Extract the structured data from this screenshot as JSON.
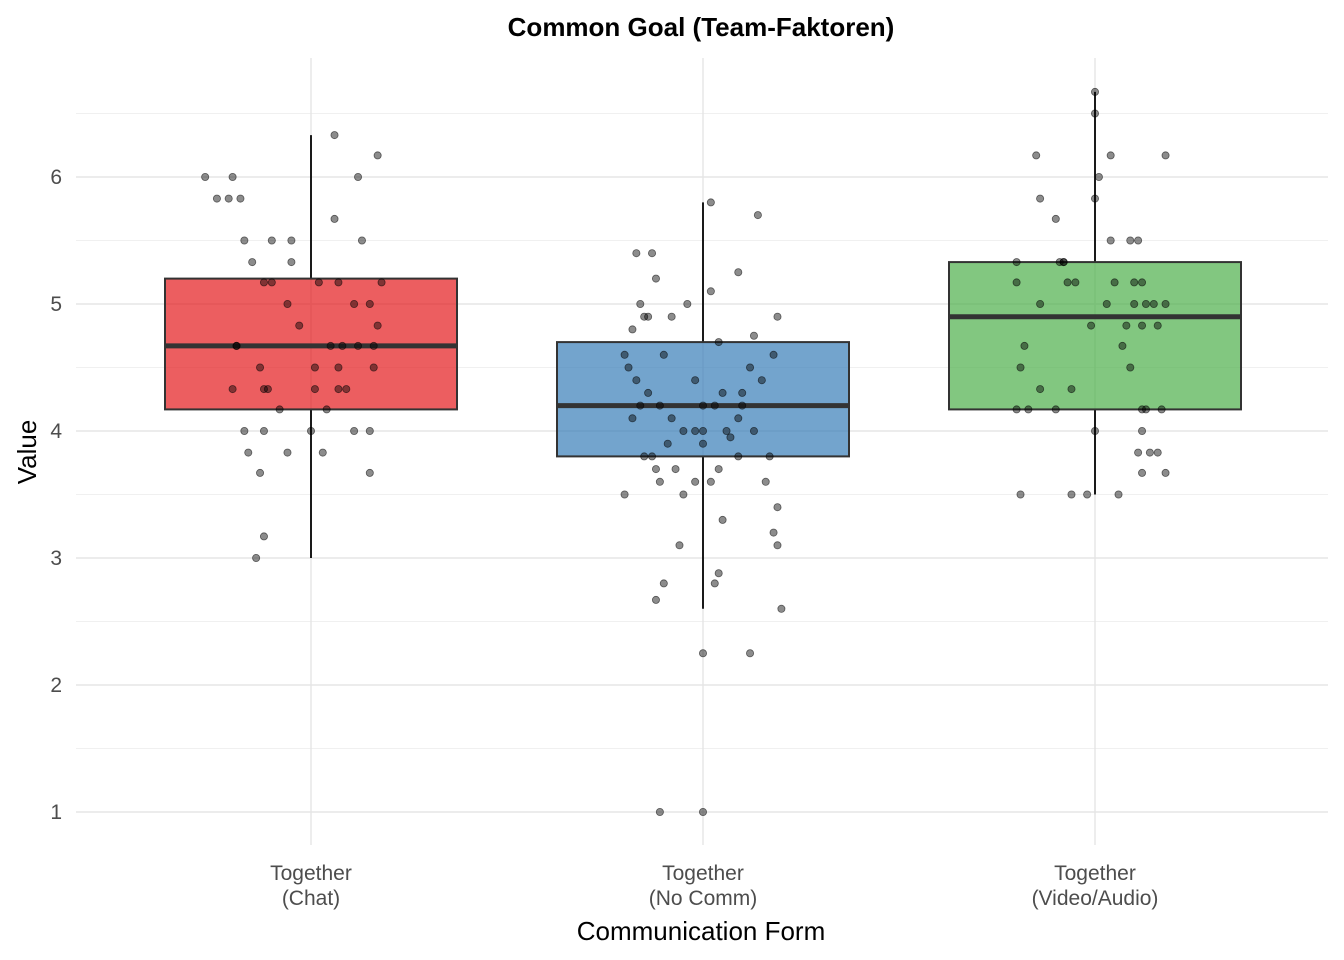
{
  "chart_data": {
    "type": "boxplot",
    "title": "Common Goal (Team-Faktoren)",
    "xlabel": "Communication Form",
    "ylabel": "Value",
    "ylim": [
      0.75,
      6.95
    ],
    "yticks": [
      1,
      2,
      3,
      4,
      5,
      6
    ],
    "grid": true,
    "categories": [
      [
        "Together",
        "(Chat)"
      ],
      [
        "Together",
        "(No Comm)"
      ],
      [
        "Together",
        "(Video/Audio)"
      ]
    ],
    "boxes": [
      {
        "category": "Together (Chat)",
        "color": "#E41A1C",
        "q1": 4.17,
        "median": 4.67,
        "q3": 5.2,
        "whisker_low": 3.0,
        "whisker_high": 6.33,
        "points": [
          [
            -0.27,
            6.0
          ],
          [
            -0.24,
            5.83
          ],
          [
            -0.21,
            5.83
          ],
          [
            -0.18,
            5.83
          ],
          [
            -0.17,
            5.5
          ],
          [
            -0.15,
            5.33
          ],
          [
            -0.1,
            5.5
          ],
          [
            -0.05,
            5.5
          ],
          [
            -0.05,
            5.33
          ],
          [
            -0.2,
            6.0
          ],
          [
            -0.12,
            5.17
          ],
          [
            -0.1,
            5.17
          ],
          [
            -0.06,
            5.0
          ],
          [
            -0.03,
            4.83
          ],
          [
            -0.19,
            4.67
          ],
          [
            -0.13,
            4.5
          ],
          [
            -0.2,
            4.33
          ],
          [
            -0.12,
            4.33
          ],
          [
            -0.08,
            4.17
          ],
          [
            0.0,
            4.0
          ],
          [
            -0.12,
            4.0
          ],
          [
            -0.17,
            4.0
          ],
          [
            -0.16,
            3.83
          ],
          [
            -0.06,
            3.83
          ],
          [
            -0.13,
            3.67
          ],
          [
            -0.12,
            3.17
          ],
          [
            -0.14,
            3.0
          ],
          [
            0.06,
            5.67
          ],
          [
            0.06,
            6.33
          ],
          [
            0.12,
            6.0
          ],
          [
            0.13,
            5.5
          ],
          [
            0.17,
            6.17
          ],
          [
            0.02,
            5.17
          ],
          [
            0.07,
            5.17
          ],
          [
            0.11,
            5.0
          ],
          [
            0.15,
            5.0
          ],
          [
            0.18,
            5.17
          ],
          [
            0.17,
            4.83
          ],
          [
            0.05,
            4.67
          ],
          [
            0.08,
            4.67
          ],
          [
            0.12,
            4.67
          ],
          [
            0.16,
            4.67
          ],
          [
            0.01,
            4.5
          ],
          [
            0.07,
            4.5
          ],
          [
            0.16,
            4.5
          ],
          [
            0.01,
            4.33
          ],
          [
            0.07,
            4.33
          ],
          [
            0.09,
            4.33
          ],
          [
            0.04,
            4.17
          ],
          [
            0.03,
            3.83
          ],
          [
            0.11,
            4.0
          ],
          [
            0.15,
            4.0
          ],
          [
            0.15,
            3.67
          ],
          [
            -0.19,
            4.67
          ],
          [
            -0.11,
            4.33
          ]
        ]
      },
      {
        "category": "Together (No Comm)",
        "color": "#377EB8",
        "q1": 3.8,
        "median": 4.2,
        "q3": 4.7,
        "whisker_low": 2.6,
        "whisker_high": 5.8,
        "points": [
          [
            -0.17,
            5.4
          ],
          [
            -0.13,
            5.4
          ],
          [
            -0.12,
            5.2
          ],
          [
            -0.16,
            5.0
          ],
          [
            -0.14,
            4.9
          ],
          [
            -0.18,
            4.8
          ],
          [
            -0.2,
            4.6
          ],
          [
            -0.19,
            4.5
          ],
          [
            -0.17,
            4.4
          ],
          [
            -0.14,
            4.3
          ],
          [
            -0.11,
            4.2
          ],
          [
            -0.08,
            4.1
          ],
          [
            -0.05,
            4.0
          ],
          [
            -0.09,
            3.9
          ],
          [
            -0.15,
            3.8
          ],
          [
            -0.12,
            3.7
          ],
          [
            -0.2,
            3.5
          ],
          [
            -0.11,
            3.6
          ],
          [
            -0.05,
            3.5
          ],
          [
            -0.06,
            3.1
          ],
          [
            -0.1,
            2.8
          ],
          [
            -0.12,
            2.67
          ],
          [
            -0.11,
            1.0
          ],
          [
            -0.08,
            4.9
          ],
          [
            -0.04,
            5.0
          ],
          [
            -0.02,
            4.4
          ],
          [
            0.0,
            4.2
          ],
          [
            0.0,
            3.9
          ],
          [
            0.0,
            4.0
          ],
          [
            0.0,
            2.25
          ],
          [
            0.0,
            1.0
          ],
          [
            0.02,
            5.1
          ],
          [
            0.04,
            4.7
          ],
          [
            0.05,
            4.3
          ],
          [
            0.03,
            4.2
          ],
          [
            0.06,
            4.0
          ],
          [
            0.04,
            3.7
          ],
          [
            0.02,
            3.6
          ],
          [
            0.05,
            3.3
          ],
          [
            0.03,
            2.8
          ],
          [
            0.04,
            2.88
          ],
          [
            0.09,
            5.25
          ],
          [
            0.13,
            4.75
          ],
          [
            0.12,
            4.5
          ],
          [
            0.09,
            4.1
          ],
          [
            0.13,
            4.0
          ],
          [
            0.17,
            3.8
          ],
          [
            0.16,
            3.6
          ],
          [
            0.18,
            3.2
          ],
          [
            0.19,
            3.1
          ],
          [
            0.19,
            3.4
          ],
          [
            0.2,
            2.6
          ],
          [
            0.12,
            2.25
          ],
          [
            0.14,
            5.7
          ],
          [
            0.19,
            4.9
          ],
          [
            0.18,
            4.6
          ],
          [
            0.15,
            4.4
          ],
          [
            0.1,
            4.3
          ],
          [
            0.07,
            3.95
          ],
          [
            -0.02,
            3.6
          ],
          [
            -0.16,
            4.2
          ],
          [
            -0.18,
            4.1
          ],
          [
            -0.13,
            3.8
          ],
          [
            -0.07,
            3.7
          ],
          [
            -0.02,
            4.0
          ],
          [
            0.02,
            5.8
          ],
          [
            -0.15,
            4.9
          ],
          [
            -0.1,
            4.6
          ],
          [
            0.09,
            3.8
          ],
          [
            0.1,
            4.2
          ]
        ]
      },
      {
        "category": "Together (Video/Audio)",
        "color": "#4DAF4A",
        "q1": 4.17,
        "median": 4.9,
        "q3": 5.33,
        "whisker_low": 3.5,
        "whisker_high": 6.67,
        "points": [
          [
            -0.15,
            6.17
          ],
          [
            -0.14,
            5.83
          ],
          [
            -0.1,
            5.67
          ],
          [
            -0.09,
            5.33
          ],
          [
            -0.07,
            5.17
          ],
          [
            -0.05,
            5.17
          ],
          [
            -0.2,
            5.33
          ],
          [
            -0.2,
            5.17
          ],
          [
            -0.14,
            5.0
          ],
          [
            -0.18,
            4.67
          ],
          [
            -0.19,
            4.5
          ],
          [
            -0.14,
            4.33
          ],
          [
            -0.2,
            4.17
          ],
          [
            -0.17,
            4.17
          ],
          [
            -0.1,
            4.17
          ],
          [
            -0.19,
            3.5
          ],
          [
            -0.06,
            3.5
          ],
          [
            -0.02,
            3.5
          ],
          [
            -0.06,
            4.33
          ],
          [
            -0.01,
            4.83
          ],
          [
            -0.08,
            5.33
          ],
          [
            -0.08,
            5.33
          ],
          [
            0.0,
            4.0
          ],
          [
            0.0,
            5.83
          ],
          [
            0.01,
            6.0
          ],
          [
            0.0,
            6.5
          ],
          [
            0.0,
            6.67
          ],
          [
            0.04,
            5.5
          ],
          [
            0.05,
            5.17
          ],
          [
            0.03,
            5.0
          ],
          [
            0.07,
            4.67
          ],
          [
            0.08,
            4.83
          ],
          [
            0.09,
            5.5
          ],
          [
            0.1,
            5.17
          ],
          [
            0.1,
            5.0
          ],
          [
            0.12,
            4.83
          ],
          [
            0.15,
            5.0
          ],
          [
            0.18,
            5.0
          ],
          [
            0.13,
            4.17
          ],
          [
            0.17,
            4.17
          ],
          [
            0.12,
            4.0
          ],
          [
            0.11,
            3.83
          ],
          [
            0.12,
            3.67
          ],
          [
            0.14,
            3.83
          ],
          [
            0.16,
            3.83
          ],
          [
            0.18,
            3.67
          ],
          [
            0.18,
            6.17
          ],
          [
            0.04,
            6.17
          ],
          [
            0.12,
            5.17
          ],
          [
            0.09,
            4.5
          ],
          [
            0.06,
            3.5
          ],
          [
            0.12,
            4.17
          ],
          [
            0.13,
            5.0
          ],
          [
            0.16,
            4.83
          ],
          [
            0.11,
            5.5
          ]
        ]
      }
    ],
    "box_alpha": 0.7,
    "point_color": "#000000",
    "point_alpha": 0.45
  }
}
